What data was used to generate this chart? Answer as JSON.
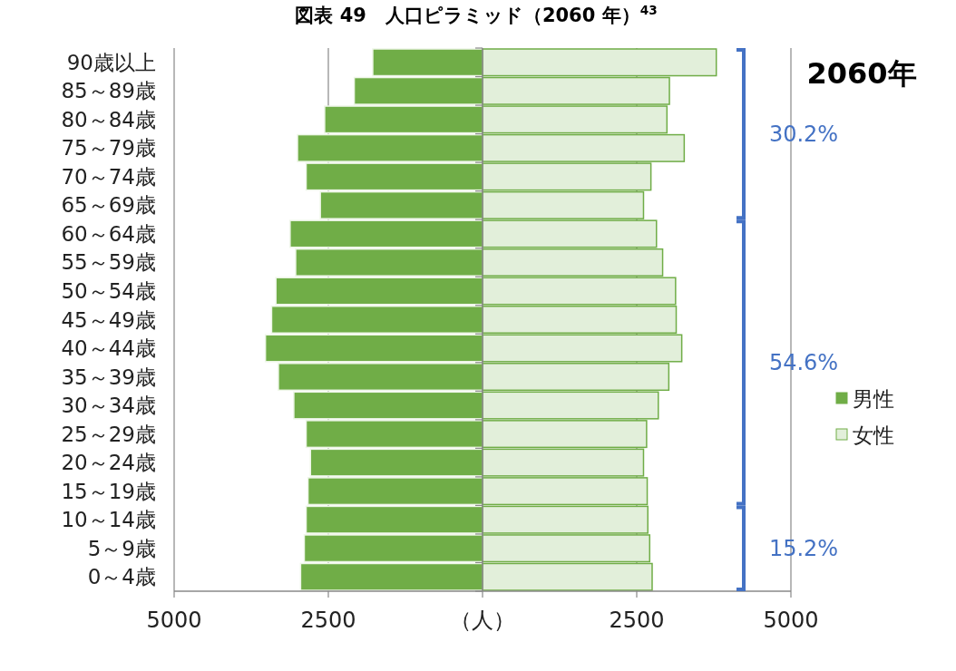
{
  "chart_data": {
    "type": "bar",
    "orientation": "horizontal",
    "title": "図表 49　人口ピラミッド（2060 年）$^{43}$",
    "categories": [
      "90歳以上",
      "85～89歳",
      "80～84歳",
      "75～79歳",
      "70～74歳",
      "65～69歳",
      "60～64歳",
      "55～59歳",
      "50～54歳",
      "45～49歳",
      "40～44歳",
      "35～39歳",
      "30～34歳",
      "25～29歳",
      "20～24歳",
      "15～19歳",
      "10～14歳",
      "5～9歳",
      "0～4歳"
    ],
    "series": [
      {
        "name": "男性",
        "color": "#70ad47",
        "values": [
          -1780,
          -2080,
          -2560,
          -3000,
          -2860,
          -2630,
          -3120,
          -3030,
          -3350,
          -3420,
          -3520,
          -3310,
          -3060,
          -2860,
          -2790,
          -2830,
          -2860,
          -2890,
          -2950
        ]
      },
      {
        "name": "女性",
        "color": "#e2efda",
        "values": [
          3790,
          3030,
          2990,
          3270,
          2730,
          2610,
          2820,
          2920,
          3130,
          3140,
          3230,
          3020,
          2850,
          2660,
          2610,
          2670,
          2680,
          2710,
          2750
        ]
      }
    ],
    "xlim": [
      -5000,
      5000
    ],
    "xticks": [
      {
        "value": -5000,
        "label": "5000"
      },
      {
        "value": -2500,
        "label": "2500"
      },
      {
        "value": 0,
        "label": "（人）"
      },
      2500,
      5000
    ],
    "grid": "x",
    "legend": "right",
    "stacked": true,
    "annotations": [
      "2060年",
      "30.2%",
      "54.6%",
      "15.2%"
    ]
  }
}
